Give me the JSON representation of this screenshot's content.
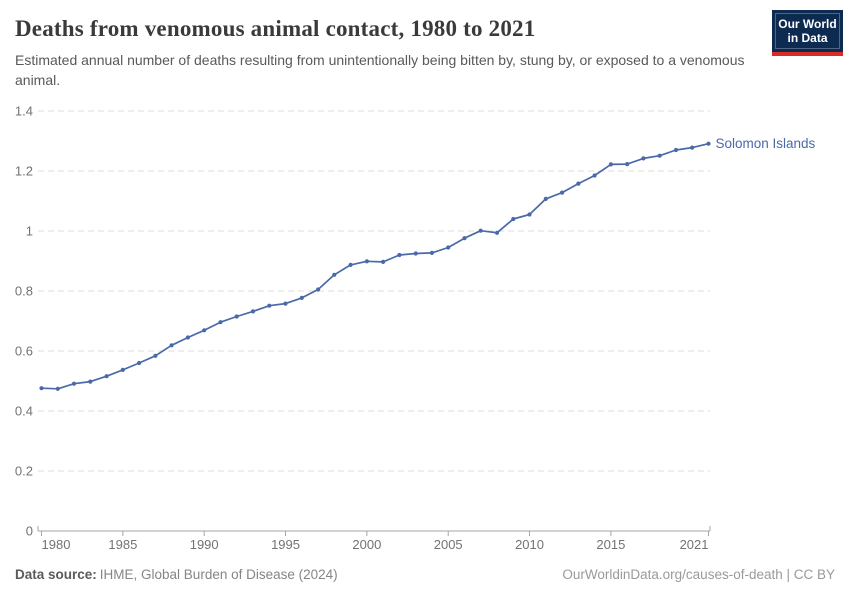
{
  "header": {
    "title": "Deaths from venomous animal contact, 1980 to 2021",
    "subtitle": "Estimated annual number of deaths resulting from unintentionally being bitten by, stung by, or exposed to a venomous animal.",
    "logo": {
      "line1": "Our World",
      "line2": "in Data"
    }
  },
  "chart_data": {
    "type": "line",
    "title": "Deaths from venomous animal contact, 1980 to 2021",
    "xlabel": "",
    "ylabel": "",
    "xlim": [
      1980,
      2021
    ],
    "ylim": [
      0,
      1.4
    ],
    "grid": "horizontal-dashed",
    "legend_position": "end-of-line-label",
    "x_ticks": [
      {
        "year": 1980,
        "label": "1980"
      },
      {
        "year": 1985,
        "label": "1985"
      },
      {
        "year": 1990,
        "label": "1990"
      },
      {
        "year": 1995,
        "label": "1995"
      },
      {
        "year": 2000,
        "label": "2000"
      },
      {
        "year": 2005,
        "label": "2005"
      },
      {
        "year": 2010,
        "label": "2010"
      },
      {
        "year": 2015,
        "label": "2015"
      },
      {
        "year": 2021,
        "label": "2021"
      }
    ],
    "y_ticks": [
      {
        "v": 0,
        "label": "0"
      },
      {
        "v": 0.2,
        "label": "0.2"
      },
      {
        "v": 0.4,
        "label": "0.4"
      },
      {
        "v": 0.6,
        "label": "0.6"
      },
      {
        "v": 0.8,
        "label": "0.8"
      },
      {
        "v": 1,
        "label": "1"
      },
      {
        "v": 1.2,
        "label": "1.2"
      },
      {
        "v": 1.4,
        "label": "1.4"
      }
    ],
    "series": [
      {
        "name": "Solomon Islands",
        "color": "#4a69a8",
        "x": [
          1980,
          1981,
          1982,
          1983,
          1984,
          1985,
          1986,
          1987,
          1988,
          1989,
          1990,
          1991,
          1992,
          1993,
          1994,
          1995,
          1996,
          1997,
          1998,
          1999,
          2000,
          2001,
          2002,
          2003,
          2004,
          2005,
          2006,
          2007,
          2008,
          2009,
          2010,
          2011,
          2012,
          2013,
          2014,
          2015,
          2016,
          2017,
          2018,
          2019,
          2020,
          2021
        ],
        "values": [
          0.476,
          0.474,
          0.491,
          0.498,
          0.516,
          0.537,
          0.56,
          0.584,
          0.619,
          0.645,
          0.669,
          0.696,
          0.715,
          0.732,
          0.751,
          0.758,
          0.777,
          0.805,
          0.854,
          0.887,
          0.899,
          0.897,
          0.92,
          0.925,
          0.927,
          0.945,
          0.976,
          1.001,
          0.994,
          1.04,
          1.055,
          1.107,
          1.128,
          1.158,
          1.185,
          1.222,
          1.223,
          1.242,
          1.251,
          1.27,
          1.278,
          1.291
        ]
      }
    ]
  },
  "footer": {
    "source_label": "Data source:",
    "source_value": "IHME, Global Burden of Disease (2024)",
    "attribution": "OurWorldinData.org/causes-of-death | CC BY"
  },
  "colors": {
    "line": "#4a69a8",
    "gridline": "#dcdcdc",
    "axis": "#a6a6a6",
    "logo_bg": "#0d2a50",
    "logo_stripe": "#dc2a27"
  }
}
